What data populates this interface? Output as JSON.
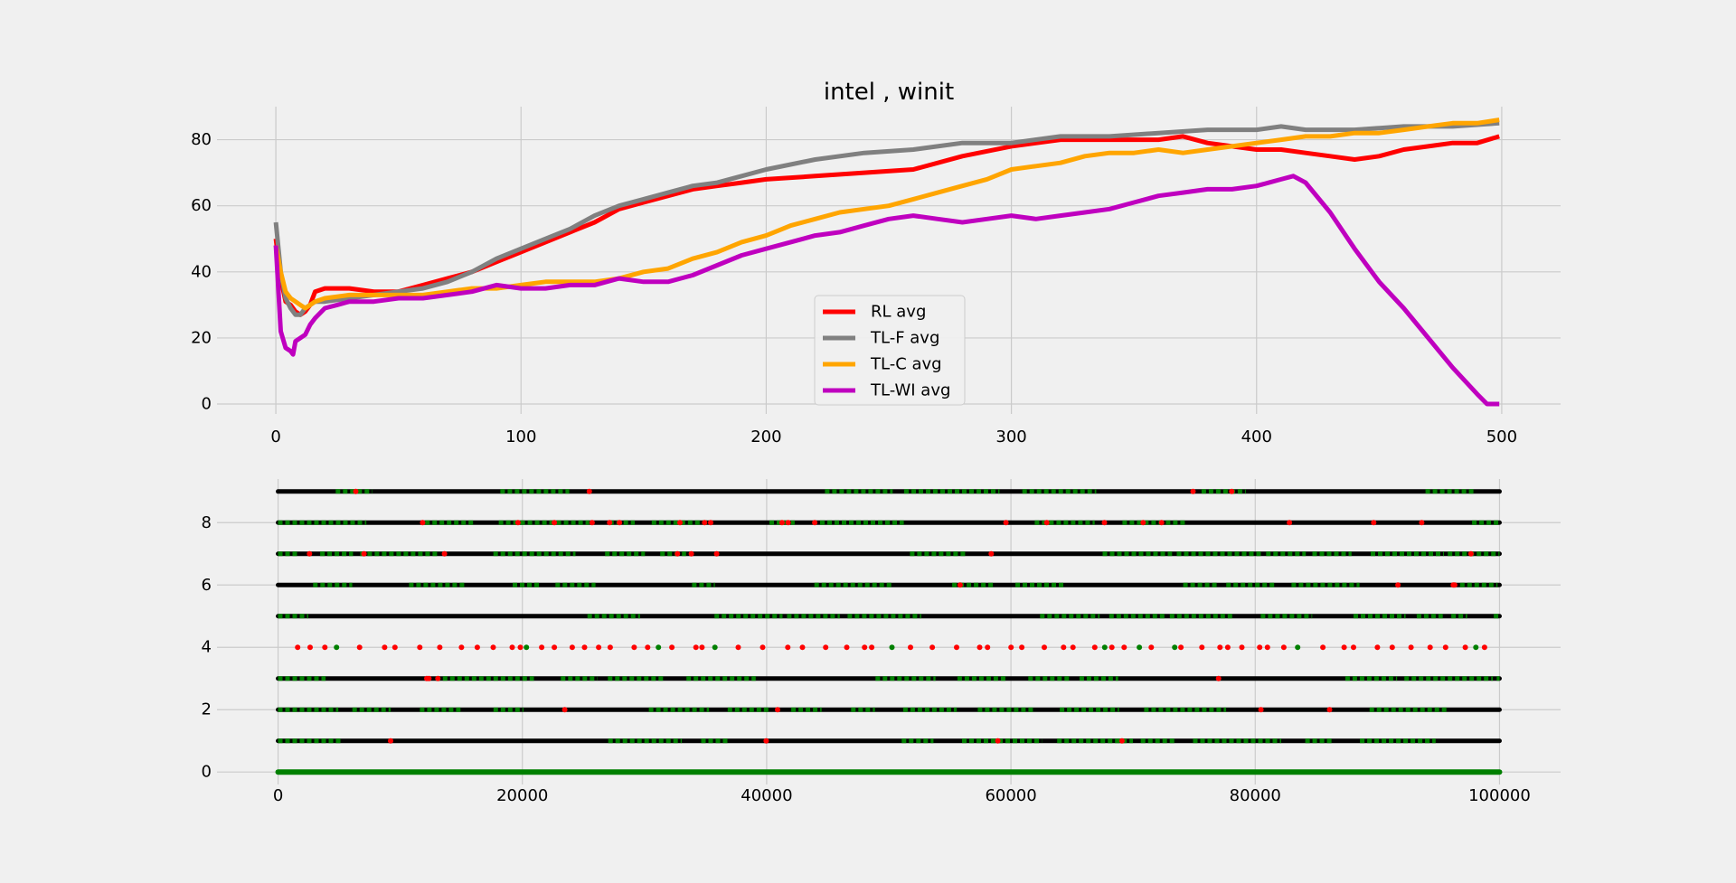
{
  "figure": {
    "background": "#f0f0f0",
    "grid_color": "#cbcbcb"
  },
  "chart_data": [
    {
      "type": "line",
      "title": "intel , winit",
      "xlabel": "",
      "ylabel": "",
      "xlim": [
        -24,
        524
      ],
      "ylim": [
        -3,
        90
      ],
      "xticks": [
        0,
        100,
        200,
        300,
        400,
        500
      ],
      "yticks": [
        0,
        20,
        40,
        60,
        80
      ],
      "grid": true,
      "legend": {
        "placement": "lower-center",
        "entries": [
          "RL avg",
          "TL-F avg",
          "TL-C avg",
          "TL-WI avg"
        ]
      },
      "series": [
        {
          "name": "RL avg",
          "color": "#ff0000",
          "x": [
            0,
            2,
            4,
            6,
            8,
            10,
            12,
            14,
            16,
            20,
            30,
            40,
            50,
            60,
            70,
            80,
            90,
            100,
            110,
            120,
            130,
            140,
            150,
            160,
            170,
            180,
            190,
            200,
            220,
            240,
            260,
            280,
            300,
            320,
            340,
            360,
            370,
            380,
            390,
            400,
            410,
            420,
            430,
            440,
            450,
            460,
            470,
            480,
            490,
            499
          ],
          "y": [
            50,
            38,
            31,
            30,
            28,
            27,
            28,
            30,
            34,
            35,
            35,
            34,
            34,
            36,
            38,
            40,
            43,
            46,
            49,
            52,
            55,
            59,
            61,
            63,
            65,
            66,
            67,
            68,
            69,
            70,
            71,
            75,
            78,
            80,
            80,
            80,
            81,
            79,
            78,
            77,
            77,
            76,
            75,
            74,
            75,
            77,
            78,
            79,
            79,
            81
          ]
        },
        {
          "name": "TL-F avg",
          "color": "#808080",
          "x": [
            0,
            2,
            4,
            6,
            8,
            10,
            12,
            14,
            16,
            20,
            30,
            40,
            50,
            60,
            70,
            80,
            90,
            100,
            110,
            120,
            130,
            140,
            150,
            160,
            170,
            180,
            190,
            200,
            220,
            240,
            260,
            280,
            300,
            320,
            340,
            360,
            380,
            400,
            410,
            420,
            440,
            460,
            480,
            499
          ],
          "y": [
            55,
            40,
            32,
            29,
            27,
            27,
            29,
            30,
            31,
            31,
            32,
            33,
            34,
            35,
            37,
            40,
            44,
            47,
            50,
            53,
            57,
            60,
            62,
            64,
            66,
            67,
            69,
            71,
            74,
            76,
            77,
            79,
            79,
            81,
            81,
            82,
            83,
            83,
            84,
            83,
            83,
            84,
            84,
            85
          ]
        },
        {
          "name": "TL-C avg",
          "color": "#ffa500",
          "x": [
            0,
            2,
            4,
            6,
            8,
            10,
            12,
            14,
            16,
            20,
            30,
            40,
            50,
            60,
            70,
            80,
            90,
            100,
            110,
            120,
            130,
            140,
            150,
            160,
            170,
            180,
            190,
            200,
            210,
            220,
            230,
            240,
            250,
            260,
            270,
            280,
            290,
            300,
            310,
            320,
            330,
            340,
            350,
            360,
            370,
            380,
            390,
            400,
            410,
            420,
            430,
            440,
            450,
            460,
            470,
            480,
            490,
            499
          ],
          "y": [
            48,
            40,
            34,
            32,
            31,
            30,
            29,
            30,
            31,
            32,
            33,
            33,
            33,
            33,
            34,
            35,
            35,
            36,
            37,
            37,
            37,
            38,
            40,
            41,
            44,
            46,
            49,
            51,
            54,
            56,
            58,
            59,
            60,
            62,
            64,
            66,
            68,
            71,
            72,
            73,
            75,
            76,
            76,
            77,
            76,
            77,
            78,
            79,
            80,
            81,
            81,
            82,
            82,
            83,
            84,
            85,
            85,
            86
          ]
        },
        {
          "name": "TL-WI avg",
          "color": "#bf00bf",
          "x": [
            0,
            2,
            4,
            6,
            7,
            8,
            10,
            12,
            14,
            16,
            20,
            25,
            30,
            40,
            50,
            60,
            70,
            80,
            90,
            100,
            110,
            120,
            130,
            140,
            150,
            160,
            170,
            180,
            190,
            200,
            210,
            220,
            230,
            240,
            250,
            260,
            270,
            280,
            290,
            300,
            310,
            320,
            330,
            340,
            350,
            360,
            370,
            380,
            390,
            400,
            405,
            410,
            415,
            420,
            430,
            440,
            450,
            460,
            470,
            480,
            490,
            494,
            499
          ],
          "y": [
            48,
            22,
            17,
            16,
            15,
            19,
            20,
            21,
            24,
            26,
            29,
            30,
            31,
            31,
            32,
            32,
            33,
            34,
            36,
            35,
            35,
            36,
            36,
            38,
            37,
            37,
            39,
            42,
            45,
            47,
            49,
            51,
            52,
            54,
            56,
            57,
            56,
            55,
            56,
            57,
            56,
            57,
            58,
            59,
            61,
            63,
            64,
            65,
            65,
            66,
            67,
            68,
            69,
            67,
            58,
            47,
            37,
            29,
            20,
            11,
            3,
            0,
            0
          ]
        }
      ]
    },
    {
      "type": "scatter",
      "title": "",
      "xlabel": "",
      "ylabel": "",
      "xlim": [
        -5000,
        105000
      ],
      "ylim": [
        -0.4,
        9.4
      ],
      "xticks": [
        0,
        20000,
        40000,
        60000,
        80000,
        100000
      ],
      "yticks": [
        0,
        2,
        4,
        6,
        8
      ],
      "grid": true,
      "point_colors": {
        "correct": "#008000",
        "wrong": "#ff0000",
        "other": "#000000"
      },
      "rows": [
        {
          "y": 0,
          "x_range": [
            0,
            100000
          ],
          "green": 1.0,
          "red": 0.0,
          "black": 0.0,
          "gaps": []
        },
        {
          "y": 1,
          "x_range": [
            0,
            100000
          ],
          "green": 0.5,
          "red": 0.01,
          "black": 0.49,
          "gaps": []
        },
        {
          "y": 2,
          "x_range": [
            0,
            100000
          ],
          "green": 0.45,
          "red": 0.01,
          "black": 0.54,
          "gaps": []
        },
        {
          "y": 3,
          "x_range": [
            0,
            100000
          ],
          "green": 0.55,
          "red": 0.01,
          "black": 0.44,
          "gaps": []
        },
        {
          "y": 4,
          "x_range": [
            0,
            100000
          ],
          "green": 0.2,
          "red": 0.8,
          "black": 0.0,
          "gaps": [],
          "sparse": true
        },
        {
          "y": 5,
          "x_range": [
            0,
            100000
          ],
          "green": 0.4,
          "red": 0.0,
          "black": 0.6,
          "gaps": []
        },
        {
          "y": 6,
          "x_range": [
            0,
            100000
          ],
          "green": 0.45,
          "red": 0.01,
          "black": 0.54,
          "gaps": []
        },
        {
          "y": 7,
          "x_range": [
            0,
            100000
          ],
          "green": 0.5,
          "red": 0.02,
          "black": 0.48,
          "gaps": []
        },
        {
          "y": 8,
          "x_range": [
            0,
            100000
          ],
          "green": 0.55,
          "red": 0.05,
          "black": 0.4,
          "gaps": []
        },
        {
          "y": 9,
          "x_range": [
            0,
            100000
          ],
          "green": 0.55,
          "red": 0.01,
          "black": 0.44,
          "gaps": []
        }
      ]
    }
  ]
}
